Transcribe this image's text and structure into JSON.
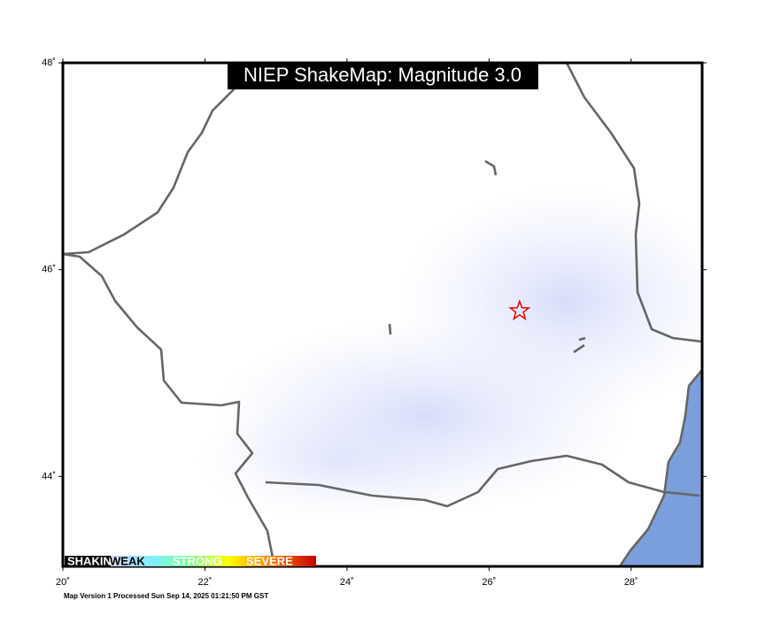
{
  "map": {
    "title": "NIEP ShakeMap: Magnitude 3.0",
    "lon_range": [
      20,
      29
    ],
    "lat_range": [
      43.13,
      48
    ],
    "lon_ticks": [
      {
        "value": 20,
        "label": "20˚"
      },
      {
        "value": 22,
        "label": "22˚"
      },
      {
        "value": 24,
        "label": "24˚"
      },
      {
        "value": 26,
        "label": "26˚"
      },
      {
        "value": 28,
        "label": "28˚"
      }
    ],
    "lat_ticks": [
      {
        "value": 44,
        "label": "44˚"
      },
      {
        "value": 46,
        "label": "46˚"
      },
      {
        "value": 48,
        "label": "48˚"
      }
    ],
    "epicenter": {
      "lon": 26.43,
      "lat": 45.6
    },
    "legend": {
      "title": "SHAKING",
      "labels": [
        "WEAK",
        "STRONG",
        "SEVERE"
      ]
    },
    "footer": "Map Version 1 Processed Sun Sep 14, 2025 01:21:50 PM GST"
  }
}
